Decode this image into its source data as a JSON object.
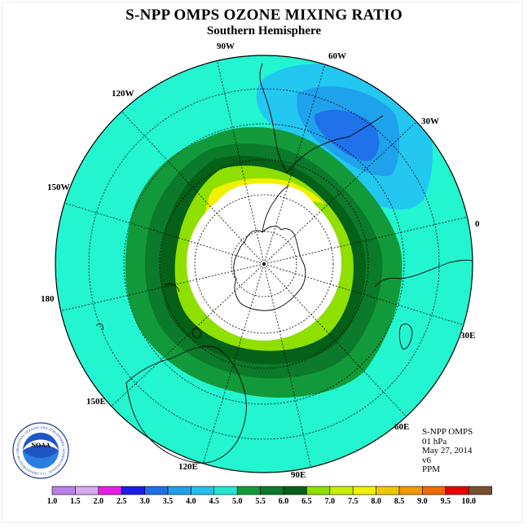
{
  "title": "S-NPP OMPS OZONE MIXING RATIO",
  "subtitle": "Southern Hemisphere",
  "longitude_labels": {
    "lon_0": "0",
    "lon_30e": "30E",
    "lon_60e": "60E",
    "lon_90e": "90E",
    "lon_120e": "120E",
    "lon_150e": "150E",
    "lon_180": "180",
    "lon_150w": "150W",
    "lon_120w": "120W",
    "lon_90w": "90W",
    "lon_60w": "60W",
    "lon_30w": "30W"
  },
  "info": {
    "line1": "S-NPP OMPS",
    "line2": "01 hPa",
    "line3": "May 27, 2014",
    "line4": "v6",
    "line5": "PPM"
  },
  "logo": {
    "text": "NOAA",
    "ring_text": "NATIONAL OCEANIC AND ATMOSPHERIC ADMINISTRATION · U.S. DEPARTMENT OF COMMERCE"
  },
  "colorbar": {
    "labels": [
      "1.0",
      "1.5",
      "2.0",
      "2.5",
      "3.0",
      "3.5",
      "4.0",
      "4.5",
      "5.0",
      "5.5",
      "6.0",
      "6.5",
      "7.0",
      "7.5",
      "8.0",
      "8.5",
      "9.0",
      "9.5",
      "10.0"
    ],
    "colors": [
      "#b97fe8",
      "#d7a8f0",
      "#e81ce8",
      "#1c1ce8",
      "#1f6fe8",
      "#1f9fe8",
      "#22c0f0",
      "#22e8d0",
      "#129a3a",
      "#0b7a2a",
      "#056018",
      "#8fe000",
      "#c8f000",
      "#f0f000",
      "#f0c800",
      "#f09a00",
      "#f06a00",
      "#e80000",
      "#7a5030"
    ]
  },
  "colors": {
    "background_field": "#22f5cf",
    "low_light_blue": "#22c8f0",
    "low_mid_blue": "#1fa2ec",
    "low_dark_blue": "#1f72ea"
  }
}
